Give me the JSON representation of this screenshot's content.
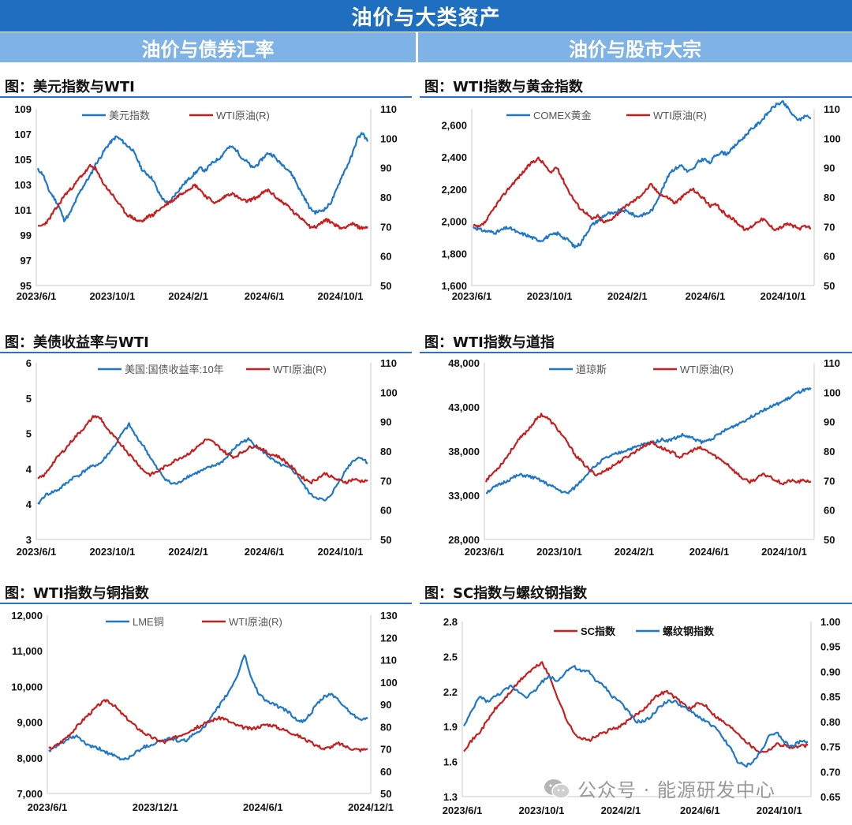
{
  "banner": {
    "title": "油价与大类资产"
  },
  "sections": {
    "left": "油价与债券汇率",
    "right": "油价与股市大宗"
  },
  "watermark": {
    "text": "公众号 · 能源研发中心",
    "icon": "wechat-icon"
  },
  "colors": {
    "blue": "#1f77c9",
    "red": "#c81e1e",
    "banner": "#1f6fc0",
    "sub": "#7fb2e5"
  },
  "chart_data": [
    {
      "id": "usd",
      "type": "line",
      "title": "图：美元指数与WTI",
      "legend_placement": "top",
      "x_ticks": [
        "2023/6/1",
        "2023/10/1",
        "2024/2/1",
        "2024/6/1",
        "2024/10/1"
      ],
      "y_left": {
        "min": 95,
        "max": 109,
        "ticks": [
          "95",
          "97",
          "99",
          "101",
          "103",
          "105",
          "107",
          "109"
        ]
      },
      "y_right": {
        "min": 50,
        "max": 110,
        "ticks": [
          "50",
          "60",
          "70",
          "80",
          "90",
          "100",
          "110"
        ]
      },
      "series": [
        {
          "name": "美元指数",
          "axis": "left",
          "color": "#1f77c9",
          "seed": 11,
          "values": [
            104.2,
            103.8,
            102.6,
            102.0,
            101.3,
            100.2,
            100.6,
            101.5,
            102.4,
            103.1,
            103.7,
            104.6,
            105.2,
            105.9,
            106.4,
            106.8,
            106.5,
            106.1,
            105.8,
            105.0,
            104.1,
            103.8,
            103.4,
            102.4,
            101.8,
            101.5,
            102.1,
            102.6,
            103.1,
            103.5,
            103.9,
            104.3,
            104.1,
            104.6,
            104.9,
            105.2,
            105.8,
            106.0,
            105.7,
            105.1,
            104.8,
            104.3,
            104.6,
            105.1,
            105.5,
            105.3,
            104.8,
            104.5,
            104.1,
            103.5,
            102.6,
            101.9,
            101.1,
            100.8,
            100.9,
            101.1,
            101.6,
            102.5,
            103.6,
            104.4,
            105.3,
            106.6,
            107.1,
            106.4
          ]
        },
        {
          "name": "WTI原油(R)",
          "axis": "right",
          "color": "#c81e1e",
          "seed": 23,
          "values": [
            69.8,
            70.6,
            72.1,
            75.0,
            77.4,
            80.5,
            82.3,
            84.1,
            86.7,
            88.4,
            90.6,
            89.7,
            86.2,
            83.5,
            81.4,
            78.9,
            76.5,
            74.1,
            73.2,
            72.0,
            71.8,
            73.4,
            74.0,
            75.6,
            76.8,
            78.2,
            79.1,
            80.8,
            81.9,
            83.0,
            84.1,
            82.6,
            80.4,
            79.1,
            78.0,
            79.2,
            80.6,
            81.3,
            80.2,
            79.0,
            78.6,
            79.4,
            80.1,
            81.5,
            82.4,
            80.8,
            79.2,
            78.0,
            76.7,
            74.5,
            73.2,
            72.1,
            70.0,
            69.8,
            71.1,
            72.3,
            71.6,
            70.4,
            69.4,
            70.2,
            71.0,
            70.1,
            69.4,
            70.0
          ]
        }
      ]
    },
    {
      "id": "gold",
      "type": "line",
      "title": "图：WTI指数与黄金指数",
      "legend_placement": "top",
      "x_ticks": [
        "2023/6/1",
        "2023/10/1",
        "2024/2/1",
        "2024/6/1",
        "2024/10/1"
      ],
      "y_left": {
        "min": 1600,
        "max": 2700,
        "ticks": [
          "1,600",
          "1,800",
          "2,000",
          "2,200",
          "2,400",
          "2,600"
        ],
        "tick_values": [
          1600,
          1800,
          2000,
          2200,
          2400,
          2600
        ]
      },
      "y_right": {
        "min": 50,
        "max": 110,
        "ticks": [
          "50",
          "60",
          "70",
          "80",
          "90",
          "100",
          "110"
        ]
      },
      "series": [
        {
          "name": "COMEX黄金",
          "axis": "left",
          "color": "#1f77c9",
          "seed": 31,
          "values": [
            1965,
            1950,
            1940,
            1935,
            1930,
            1945,
            1960,
            1950,
            1925,
            1920,
            1905,
            1890,
            1880,
            1900,
            1915,
            1925,
            1900,
            1880,
            1840,
            1860,
            1920,
            1975,
            2000,
            2030,
            2050,
            2045,
            2070,
            2065,
            2050,
            2030,
            2040,
            2050,
            2080,
            2160,
            2230,
            2310,
            2330,
            2350,
            2310,
            2320,
            2370,
            2390,
            2360,
            2410,
            2430,
            2420,
            2450,
            2490,
            2520,
            2560,
            2590,
            2620,
            2660,
            2700,
            2730,
            2740,
            2700,
            2650,
            2630,
            2660,
            2640
          ]
        },
        {
          "name": "WTI原油(R)",
          "axis": "right",
          "color": "#c81e1e",
          "seed": 37,
          "values": [
            70.2,
            69.8,
            71.5,
            74.6,
            77.8,
            80.4,
            83.1,
            85.4,
            87.6,
            89.9,
            92.0,
            93.1,
            91.2,
            88.0,
            90.4,
            86.5,
            82.5,
            79.1,
            76.3,
            74.8,
            72.5,
            73.6,
            71.4,
            72.2,
            73.8,
            75.5,
            77.4,
            78.6,
            80.2,
            82.1,
            84.3,
            82.0,
            80.5,
            79.8,
            78.0,
            79.6,
            81.4,
            82.8,
            81.0,
            79.4,
            76.8,
            77.5,
            75.2,
            73.6,
            72.4,
            70.5,
            68.8,
            70.1,
            71.9,
            72.6,
            70.4,
            69.1,
            69.8,
            71.0,
            70.2,
            69.3,
            70.0,
            69.5
          ]
        }
      ]
    },
    {
      "id": "ust",
      "type": "line",
      "title": "图：美债收益率与WTI",
      "legend_placement": "top",
      "x_ticks": [
        "2023/6/1",
        "2023/10/1",
        "2024/2/1",
        "2024/6/1",
        "2024/10/1"
      ],
      "y_left": {
        "min": 3.0,
        "max": 6.0,
        "ticks": [
          "3",
          "4",
          "4",
          "5",
          "5",
          "6"
        ],
        "tick_values": [
          3.0,
          3.6,
          4.2,
          4.8,
          5.4,
          6.0
        ]
      },
      "y_right": {
        "min": 50,
        "max": 110,
        "ticks": [
          "50",
          "60",
          "70",
          "80",
          "90",
          "100",
          "110"
        ]
      },
      "series": [
        {
          "name": "美国:国债收益率:10年",
          "axis": "left",
          "color": "#1f77c9",
          "seed": 41,
          "values": [
            3.6,
            3.75,
            3.8,
            3.85,
            3.95,
            4.05,
            4.1,
            4.2,
            4.25,
            4.3,
            4.45,
            4.6,
            4.8,
            4.95,
            4.75,
            4.6,
            4.4,
            4.2,
            4.05,
            3.95,
            3.95,
            4.05,
            4.1,
            4.15,
            4.2,
            4.25,
            4.3,
            4.4,
            4.55,
            4.65,
            4.7,
            4.6,
            4.5,
            4.4,
            4.3,
            4.25,
            4.2,
            4.1,
            3.9,
            3.75,
            3.7,
            3.65,
            3.8,
            4.0,
            4.2,
            4.35,
            4.4,
            4.3
          ]
        },
        {
          "name": "WTI原油(R)",
          "axis": "right",
          "color": "#c81e1e",
          "seed": 43,
          "values": [
            70.5,
            72.0,
            75.5,
            78.5,
            81.0,
            84.0,
            86.5,
            89.0,
            92.0,
            91.0,
            87.0,
            84.5,
            82.0,
            79.0,
            76.5,
            73.5,
            72.0,
            73.0,
            74.5,
            76.0,
            77.5,
            78.5,
            80.0,
            82.0,
            84.0,
            83.0,
            81.0,
            79.0,
            78.0,
            79.5,
            81.0,
            82.0,
            80.5,
            79.0,
            78.5,
            77.0,
            75.0,
            72.5,
            70.5,
            69.5,
            71.0,
            72.5,
            71.0,
            70.0,
            69.5,
            70.5,
            69.8,
            70.2
          ]
        }
      ]
    },
    {
      "id": "dow",
      "type": "line",
      "title": "图：WTI指数与道指",
      "legend_placement": "top",
      "x_ticks": [
        "2023/6/1",
        "2023/10/1",
        "2024/2/1",
        "2024/6/1",
        "2024/10/1"
      ],
      "y_left": {
        "min": 28000,
        "max": 48000,
        "ticks": [
          "28,000",
          "33,000",
          "38,000",
          "43,000",
          "48,000"
        ],
        "tick_values": [
          28000,
          33000,
          38000,
          43000,
          48000
        ]
      },
      "y_right": {
        "min": 50,
        "max": 110,
        "ticks": [
          "50",
          "60",
          "70",
          "80",
          "90",
          "100",
          "110"
        ]
      },
      "series": [
        {
          "name": "道琼斯",
          "axis": "left",
          "color": "#1f77c9",
          "seed": 51,
          "values": [
            33300,
            33800,
            34200,
            34600,
            35000,
            35300,
            35200,
            35000,
            34700,
            34300,
            33900,
            33500,
            33200,
            33800,
            34600,
            35500,
            36200,
            36900,
            37300,
            37600,
            37900,
            38200,
            38400,
            38700,
            38900,
            39100,
            39300,
            39200,
            39500,
            39800,
            39600,
            39300,
            39000,
            39300,
            39700,
            40200,
            40600,
            41000,
            41400,
            41800,
            42300,
            42700,
            43000,
            43300,
            43700,
            44100,
            44600,
            44900,
            45000
          ]
        },
        {
          "name": "WTI原油(R)",
          "axis": "right",
          "color": "#c81e1e",
          "seed": 53,
          "values": [
            70.0,
            72.5,
            75.0,
            78.0,
            81.5,
            84.5,
            87.0,
            90.0,
            92.5,
            91.0,
            88.5,
            85.5,
            82.0,
            78.5,
            76.0,
            73.5,
            72.0,
            73.0,
            74.5,
            76.0,
            77.5,
            79.0,
            80.5,
            82.0,
            83.0,
            81.5,
            80.5,
            79.5,
            78.0,
            79.0,
            80.5,
            81.0,
            80.0,
            78.5,
            77.0,
            75.5,
            73.0,
            71.0,
            69.5,
            70.5,
            72.0,
            71.5,
            70.0,
            69.0,
            70.0,
            69.5,
            70.0,
            69.8
          ]
        }
      ]
    },
    {
      "id": "copper",
      "type": "line",
      "title": "图：WTI指数与铜指数",
      "legend_placement": "top",
      "x_ticks": [
        "2023/6/1",
        "2023/12/1",
        "2024/6/1",
        "2024/12/1"
      ],
      "y_left": {
        "min": 7000,
        "max": 12000,
        "ticks": [
          "7,000",
          "8,000",
          "9,000",
          "10,000",
          "11,000",
          "12,000"
        ],
        "tick_values": [
          7000,
          8000,
          9000,
          10000,
          11000,
          12000
        ]
      },
      "y_right": {
        "min": 50,
        "max": 130,
        "ticks": [
          "50",
          "60",
          "70",
          "80",
          "90",
          "100",
          "110",
          "120",
          "130"
        ]
      },
      "series": [
        {
          "name": "LME铜",
          "axis": "left",
          "color": "#1f77c9",
          "seed": 61,
          "values": [
            8200,
            8300,
            8450,
            8550,
            8600,
            8400,
            8300,
            8250,
            8150,
            8050,
            7950,
            8000,
            8150,
            8300,
            8350,
            8450,
            8500,
            8550,
            8450,
            8500,
            8650,
            8800,
            9000,
            9300,
            9600,
            9900,
            10300,
            10900,
            10200,
            9800,
            9600,
            9500,
            9400,
            9300,
            9100,
            9000,
            9200,
            9500,
            9700,
            9800,
            9600,
            9400,
            9200,
            9100,
            9100
          ]
        },
        {
          "name": "WTI原油(R)",
          "axis": "right",
          "color": "#c81e1e",
          "seed": 67,
          "values": [
            70.0,
            71.5,
            74.0,
            77.0,
            80.5,
            84.0,
            87.0,
            90.0,
            92.0,
            89.5,
            86.0,
            83.0,
            80.0,
            77.5,
            75.5,
            74.0,
            73.0,
            74.5,
            76.0,
            77.5,
            79.0,
            80.5,
            82.0,
            83.5,
            84.0,
            82.0,
            80.5,
            79.5,
            79.0,
            80.0,
            81.0,
            80.5,
            79.0,
            78.0,
            76.5,
            75.0,
            73.0,
            71.5,
            70.0,
            71.0,
            72.5,
            71.0,
            70.0,
            69.5,
            70.0
          ]
        }
      ]
    },
    {
      "id": "sc",
      "type": "line",
      "title": "图：SC指数与螺纹钢指数",
      "legend_placement": "top",
      "x_ticks": [
        "2023/6/1",
        "2023/10/1",
        "2024/2/1",
        "2024/6/1",
        "2024/10/1"
      ],
      "y_left": {
        "min": 1.3,
        "max": 2.8,
        "ticks": [
          "1.3",
          "1.6",
          "1.9",
          "2.2",
          "2.5",
          "2.8"
        ],
        "tick_values": [
          1.3,
          1.6,
          1.9,
          2.2,
          2.5,
          2.8
        ]
      },
      "y_right": {
        "min": 0.65,
        "max": 1.0,
        "ticks": [
          "0.65",
          "0.70",
          "0.75",
          "0.80",
          "0.85",
          "0.90",
          "0.95",
          "1.00"
        ],
        "tick_values": [
          0.65,
          0.7,
          0.75,
          0.8,
          0.85,
          0.9,
          0.95,
          1.0
        ]
      },
      "series": [
        {
          "name": "SC指数",
          "axis": "left",
          "color": "#c81e1e",
          "seed": 71,
          "values": [
            1.7,
            1.78,
            1.85,
            1.95,
            2.05,
            2.12,
            2.2,
            2.28,
            2.35,
            2.4,
            2.45,
            2.32,
            2.15,
            1.98,
            1.85,
            1.8,
            1.78,
            1.82,
            1.85,
            1.88,
            1.9,
            1.95,
            2.0,
            2.05,
            2.12,
            2.18,
            2.2,
            2.15,
            2.1,
            2.05,
            2.1,
            2.08,
            2.0,
            1.95,
            1.9,
            1.85,
            1.78,
            1.72,
            1.68,
            1.7,
            1.75,
            1.74,
            1.72,
            1.73,
            1.74
          ]
        },
        {
          "name": "螺纹钢指数",
          "axis": "right",
          "color": "#1f77c9",
          "seed": 73,
          "values": [
            0.79,
            0.82,
            0.85,
            0.84,
            0.85,
            0.86,
            0.87,
            0.86,
            0.85,
            0.86,
            0.88,
            0.89,
            0.88,
            0.9,
            0.91,
            0.9,
            0.9,
            0.88,
            0.87,
            0.85,
            0.84,
            0.82,
            0.8,
            0.8,
            0.81,
            0.83,
            0.84,
            0.84,
            0.83,
            0.82,
            0.81,
            0.8,
            0.79,
            0.77,
            0.75,
            0.72,
            0.71,
            0.72,
            0.74,
            0.77,
            0.78,
            0.76,
            0.75,
            0.76,
            0.76
          ]
        }
      ]
    }
  ]
}
